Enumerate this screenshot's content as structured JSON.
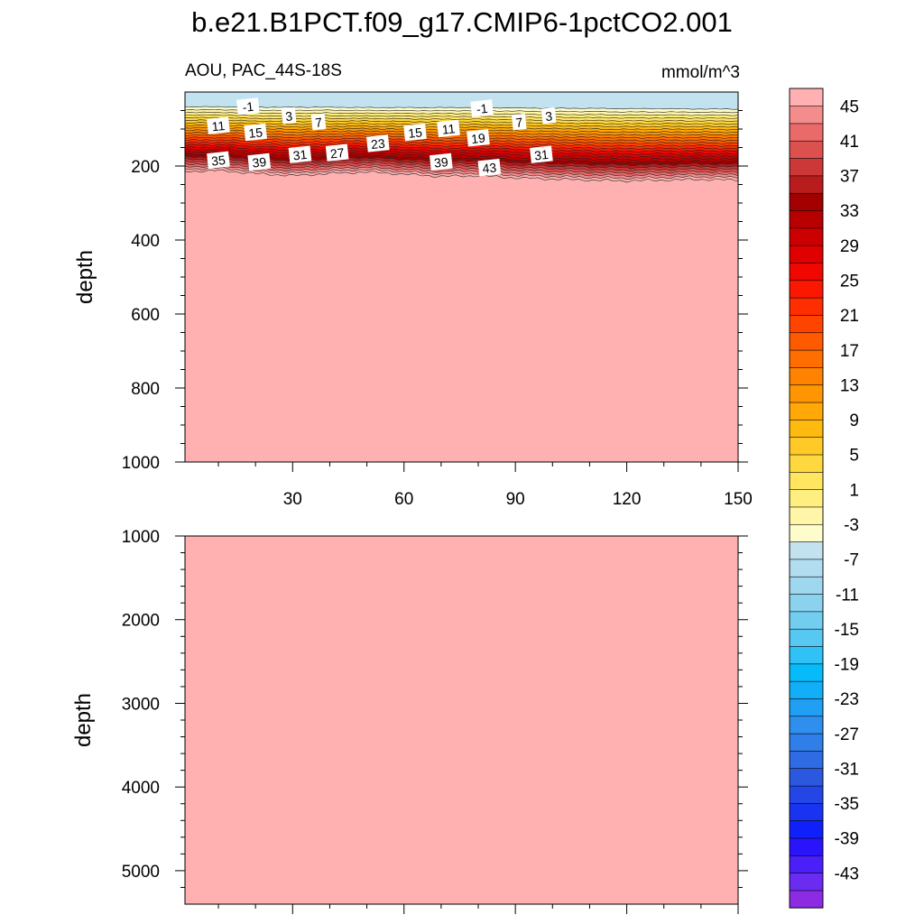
{
  "figure": {
    "title": "b.e21.B1PCT.f09_g17.CMIP6-1pctCO2.001"
  },
  "chart_data": [
    {
      "type": "heatmap",
      "subtype": "filled-contour",
      "panel": "upper",
      "title_left": "AOU, PAC_44S-18S",
      "title_right": "mmol/m^3",
      "ylabel": "depth",
      "xlabel": "",
      "xlim": [
        1,
        150
      ],
      "ylim": [
        1000,
        0
      ],
      "xticks": [
        30,
        60,
        90,
        120,
        150
      ],
      "yticks": [
        200,
        400,
        600,
        800,
        1000
      ],
      "x": [
        1,
        10,
        20,
        30,
        40,
        50,
        60,
        70,
        80,
        90,
        100,
        110,
        120,
        130,
        140,
        150
      ],
      "depth_zero_contour": [
        40,
        40,
        41,
        41,
        41,
        42,
        42,
        42,
        42,
        43,
        44,
        44,
        45,
        45,
        46,
        46
      ],
      "depth_max_contour": [
        215,
        212,
        220,
        226,
        220,
        216,
        222,
        228,
        226,
        232,
        235,
        238,
        240,
        238,
        236,
        238
      ],
      "deep_value": "above 45",
      "contour_labels": [
        {
          "text": "-1",
          "x": 18,
          "depth": 40
        },
        {
          "text": "3",
          "x": 29,
          "depth": 65
        },
        {
          "text": "7",
          "x": 37,
          "depth": 82
        },
        {
          "text": "11",
          "x": 10,
          "depth": 92
        },
        {
          "text": "15",
          "x": 20,
          "depth": 110
        },
        {
          "text": "-1",
          "x": 81,
          "depth": 45
        },
        {
          "text": "7",
          "x": 91,
          "depth": 82
        },
        {
          "text": "3",
          "x": 99,
          "depth": 65
        },
        {
          "text": "15",
          "x": 63,
          "depth": 110
        },
        {
          "text": "11",
          "x": 72,
          "depth": 100
        },
        {
          "text": "19",
          "x": 80,
          "depth": 125
        },
        {
          "text": "23",
          "x": 53,
          "depth": 140
        },
        {
          "text": "27",
          "x": 42,
          "depth": 165
        },
        {
          "text": "31",
          "x": 32,
          "depth": 170
        },
        {
          "text": "35",
          "x": 10,
          "depth": 185
        },
        {
          "text": "39",
          "x": 21,
          "depth": 190
        },
        {
          "text": "39",
          "x": 70,
          "depth": 190
        },
        {
          "text": "43",
          "x": 83,
          "depth": 205
        },
        {
          "text": "31",
          "x": 97,
          "depth": 170
        }
      ]
    },
    {
      "type": "heatmap",
      "subtype": "filled-contour",
      "panel": "lower",
      "ylabel": "depth",
      "xlabel": "",
      "xlim": [
        1,
        150
      ],
      "ylim": [
        5400,
        1000
      ],
      "yticks": [
        1000,
        2000,
        3000,
        4000,
        5000
      ],
      "uniform_value": "above 45"
    }
  ],
  "colorbar": {
    "labels": [
      "45",
      "41",
      "37",
      "33",
      "29",
      "25",
      "21",
      "17",
      "13",
      "9",
      "5",
      "1",
      "-3",
      "-7",
      "-11",
      "-15",
      "-19",
      "-23",
      "-27",
      "-31",
      "-35",
      "-39",
      "-43"
    ],
    "levels_min": -47,
    "levels_step": 2,
    "levels_count": 47,
    "colors": [
      "#8b2be2",
      "#6a2cf0",
      "#4a1ff8",
      "#2a14fc",
      "#1020fa",
      "#1a33f0",
      "#2446e6",
      "#2c58e0",
      "#2f6be2",
      "#307ee8",
      "#2f8fee",
      "#209ff4",
      "#12aef8",
      "#06bbfa",
      "#30c2f6",
      "#56c8f2",
      "#72cdef",
      "#8ad2ee",
      "#9fd7ee",
      "#b2dcef",
      "#c2e2f0",
      "#fffccc",
      "#fff6a8",
      "#ffee80",
      "#ffe560",
      "#ffd840",
      "#ffca28",
      "#ffba10",
      "#ffa808",
      "#ff9500",
      "#ff8200",
      "#ff6e00",
      "#ff5a00",
      "#ff4400",
      "#ff2e00",
      "#fc1800",
      "#f00800",
      "#e00000",
      "#cc0000",
      "#b80000",
      "#a30000",
      "#b81c1c",
      "#cc3838",
      "#dd5050",
      "#ea6a6a",
      "#f48c8c",
      "#ffb0b0"
    ]
  }
}
